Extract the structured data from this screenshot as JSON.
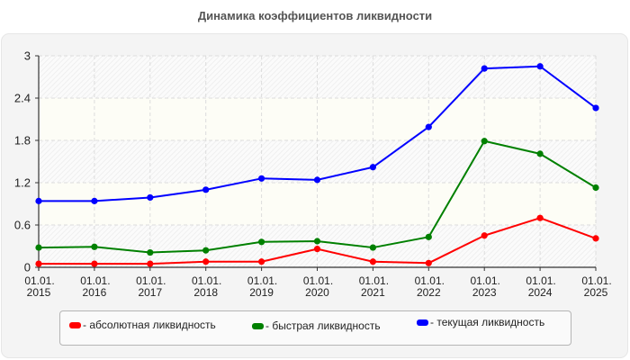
{
  "chart_data": {
    "type": "line",
    "title": "Динамика коэффициентов ликвидности",
    "xlabel": "",
    "ylabel": "",
    "ylim": [
      0,
      3
    ],
    "y_ticks": [
      "0",
      "0.6",
      "1.2",
      "1.8",
      "2.4",
      "3"
    ],
    "y_tick_values": [
      0,
      0.6,
      1.2,
      1.8,
      2.4,
      3
    ],
    "categories": [
      "01.01.2015",
      "01.01.2016",
      "01.01.2017",
      "01.01.2018",
      "01.01.2019",
      "01.01.2020",
      "01.01.2021",
      "01.01.2022",
      "01.01.2023",
      "01.01.2024",
      "01.01.2025"
    ],
    "x_tick_labels": [
      [
        "01.01.",
        "2015"
      ],
      [
        "01.01.",
        "2016"
      ],
      [
        "01.01.",
        "2017"
      ],
      [
        "01.01.",
        "2018"
      ],
      [
        "01.01.",
        "2019"
      ],
      [
        "01.01.",
        "2020"
      ],
      [
        "01.01.",
        "2021"
      ],
      [
        "01.01.",
        "2022"
      ],
      [
        "01.01.",
        "2023"
      ],
      [
        "01.01.",
        "2024"
      ],
      [
        "01.01.",
        "2025"
      ]
    ],
    "grid": true,
    "legend_position": "bottom",
    "series": [
      {
        "name": "абсолютная ликвидность",
        "color": "#ff0000",
        "values": [
          0.05,
          0.05,
          0.05,
          0.08,
          0.08,
          0.26,
          0.08,
          0.06,
          0.45,
          0.7,
          0.41
        ]
      },
      {
        "name": "быстрая ликвидность",
        "color": "#008000",
        "values": [
          0.28,
          0.29,
          0.21,
          0.24,
          0.36,
          0.37,
          0.28,
          0.43,
          1.79,
          1.61,
          1.13
        ]
      },
      {
        "name": "текущая ликвидность",
        "color": "#0000ff",
        "values": [
          0.94,
          0.94,
          0.99,
          1.1,
          1.26,
          1.24,
          1.42,
          1.99,
          2.82,
          2.85,
          2.26
        ]
      }
    ]
  },
  "legend": {
    "items": [
      {
        "label": "- абсолютная ликвидность",
        "color": "#ff0000"
      },
      {
        "label": "- быстрая ликвидность",
        "color": "#008000"
      },
      {
        "label": "- текущая ликвидность",
        "color": "#0000ff"
      }
    ]
  }
}
